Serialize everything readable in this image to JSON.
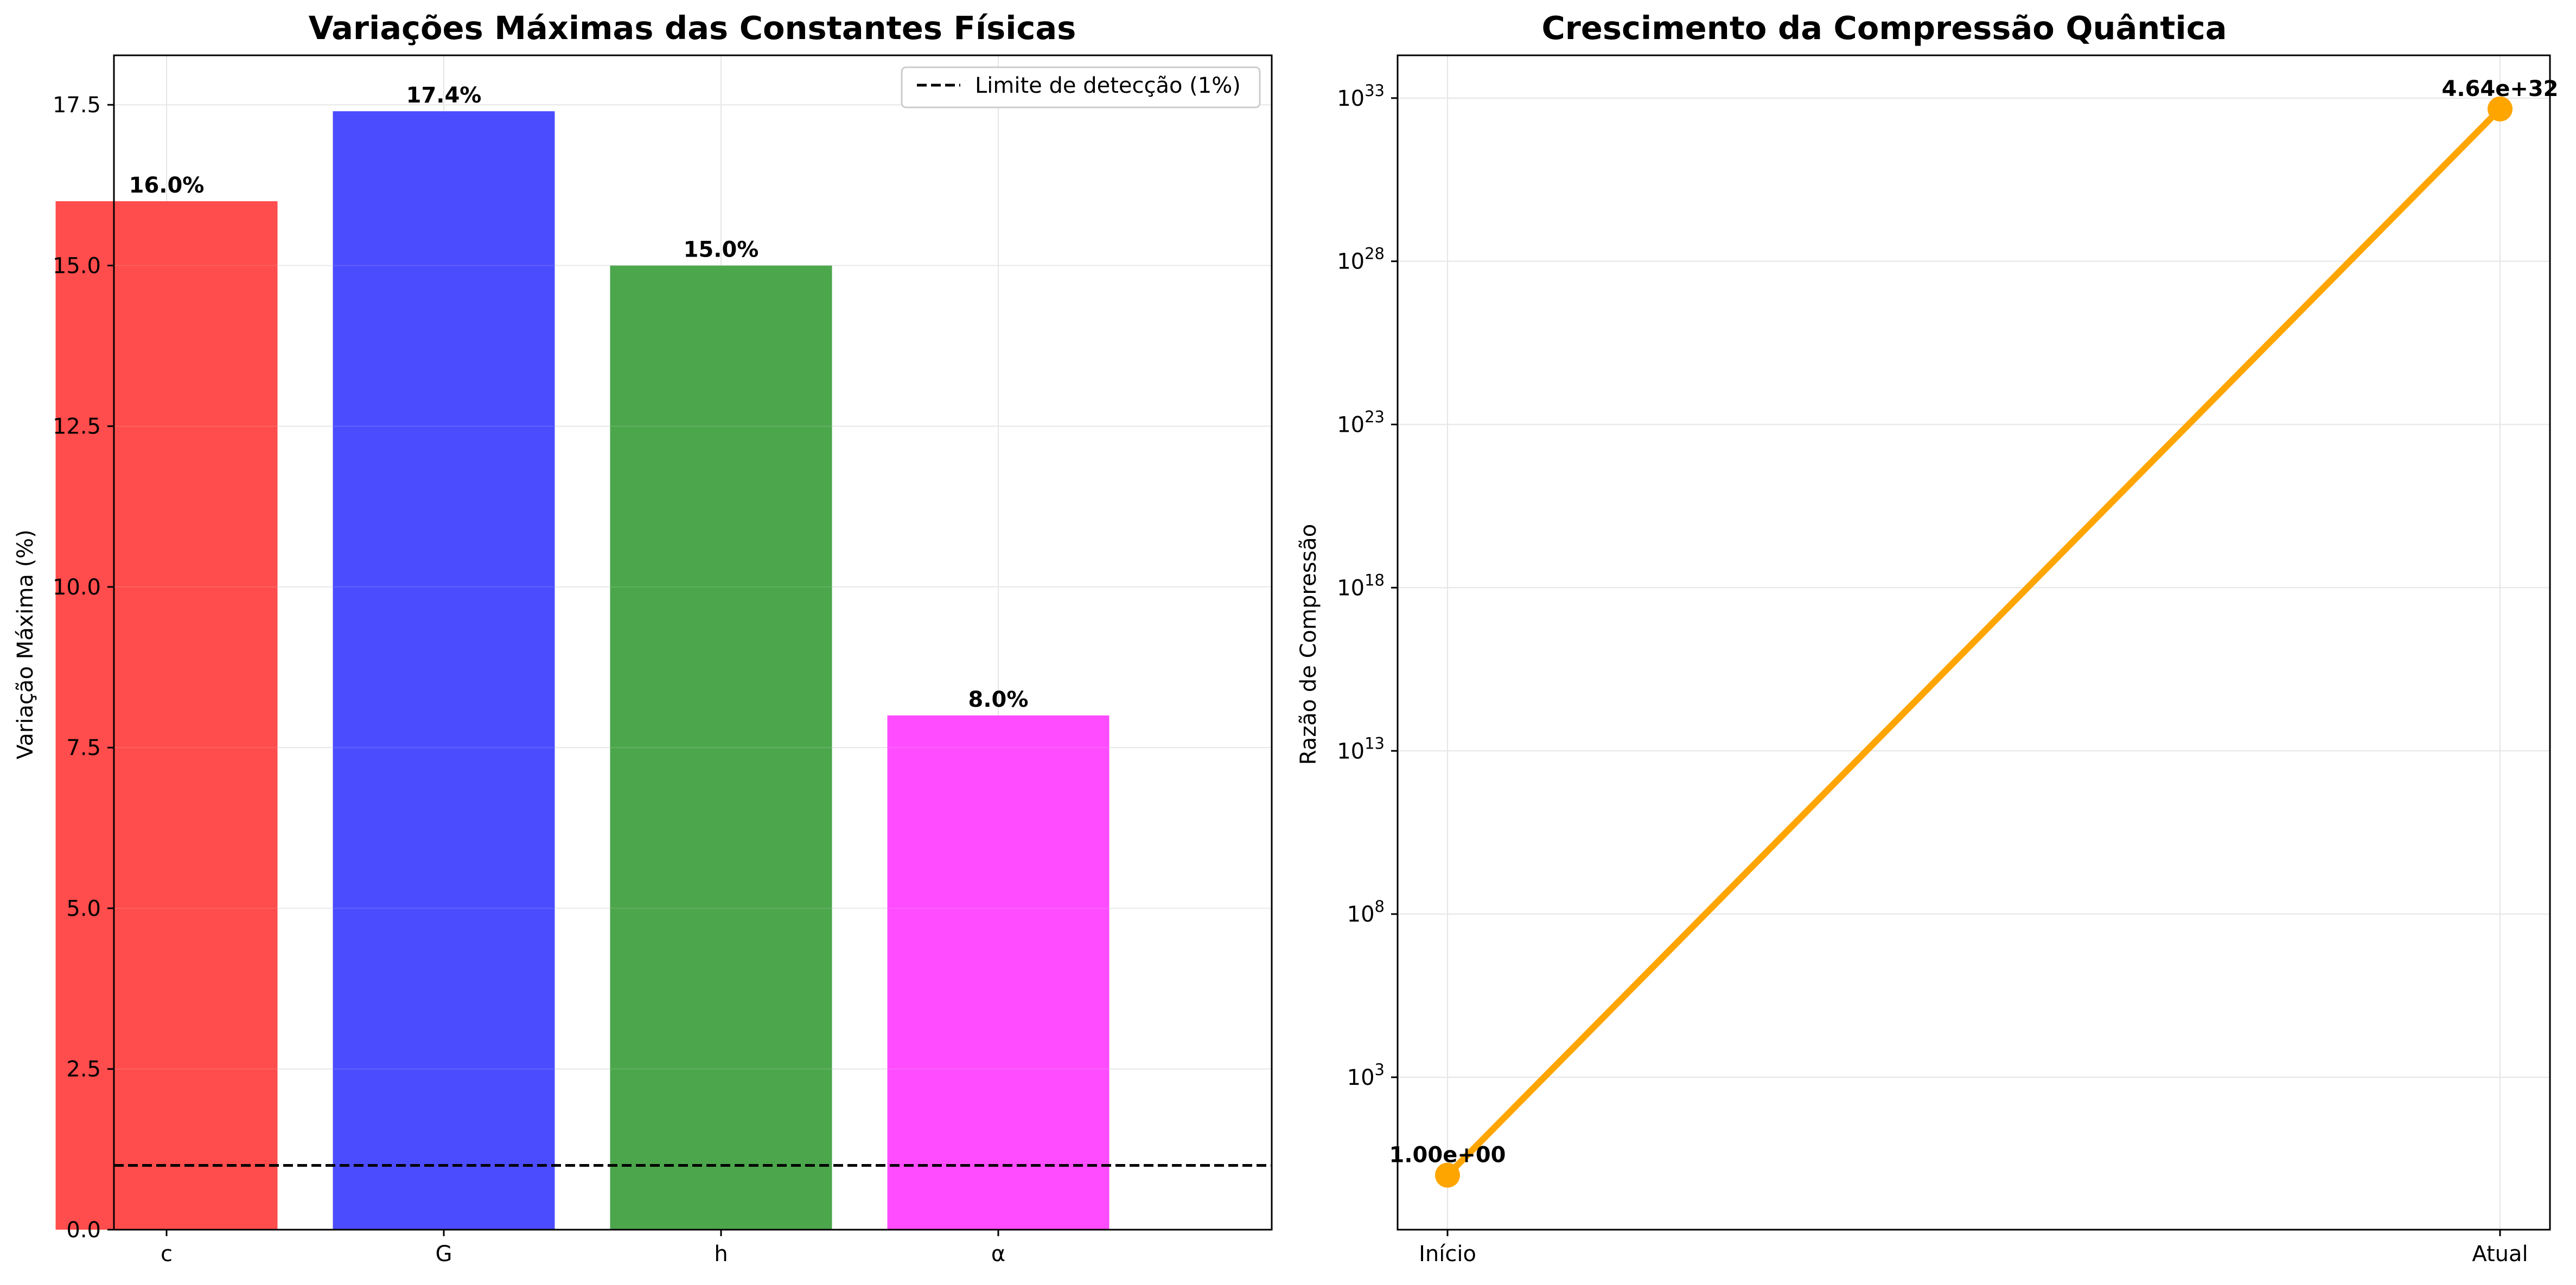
{
  "chart_data": [
    {
      "type": "bar",
      "title": "Variações Máximas das Constantes Físicas",
      "xlabel": "",
      "ylabel": "Variação Máxima (%)",
      "categories": [
        "c",
        "G",
        "h",
        "α"
      ],
      "values": [
        16.0,
        17.4,
        15.0,
        8.0
      ],
      "value_labels": [
        "16.0%",
        "17.4%",
        "15.0%",
        "8.0%"
      ],
      "colors": [
        "#ff4c4c",
        "#4c4cff",
        "#4ca64c",
        "#ff4cff"
      ],
      "ylim": [
        0,
        18.27
      ],
      "yticks": [
        0.0,
        2.5,
        5.0,
        7.5,
        10.0,
        12.5,
        15.0,
        17.5
      ],
      "ytick_labels": [
        "0.0",
        "2.5",
        "5.0",
        "7.5",
        "10.0",
        "12.5",
        "15.0",
        "17.5"
      ],
      "grid": true,
      "reference_line": {
        "y": 1.0,
        "style": "dashed",
        "color": "#000000",
        "label": "Limite de detecção (1%)"
      },
      "legend": {
        "position": "top-right",
        "entries": [
          "Limite de detecção (1%)"
        ]
      }
    },
    {
      "type": "line",
      "title": "Crescimento da Compressão Quântica",
      "xlabel": "",
      "ylabel": "Razão de Compressão",
      "yscale": "log",
      "categories": [
        "Início",
        "Atual"
      ],
      "series": [
        {
          "name": "Razão de Compressão",
          "values": [
            1.0,
            4.64e+32
          ],
          "color": "#ffa500"
        }
      ],
      "point_labels": [
        "1.00e+00",
        "4.64e+32"
      ],
      "ylim_log10": [
        -1.67,
        34.31
      ],
      "yticks_exp": [
        3,
        8,
        13,
        18,
        23,
        28,
        33
      ],
      "ytick_base": "10",
      "grid": true
    }
  ]
}
